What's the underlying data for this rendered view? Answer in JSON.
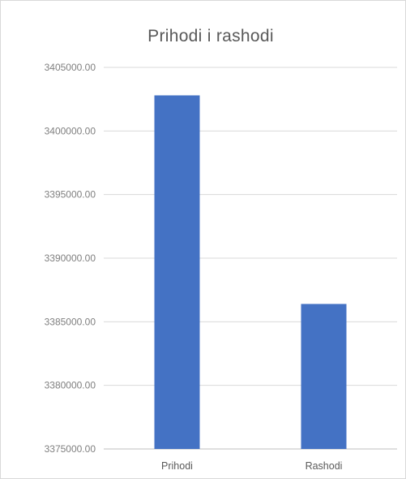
{
  "chart_data": {
    "type": "bar",
    "title": "Prihodi i rashodi",
    "categories": [
      "Prihodi",
      "Rashodi"
    ],
    "values": [
      3402800,
      3386400
    ],
    "ylim": [
      3375000,
      3405000
    ],
    "yticks": [
      "3405000.00",
      "3400000.00",
      "3395000.00",
      "3390000.00",
      "3385000.00",
      "3380000.00",
      "3375000.00"
    ],
    "grid": true,
    "legend": "none",
    "bar_color": "#4472c4",
    "grid_color": "#d9d9d9",
    "axis_color": "#bfbfbf"
  }
}
